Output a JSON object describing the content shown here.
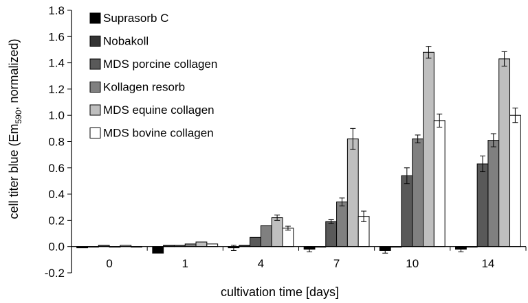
{
  "chart_data": {
    "type": "bar",
    "title": "",
    "xlabel": "cultivation time [days]",
    "ylabel_main": "cell titer blue (Em",
    "ylabel_sub": "590",
    "ylabel_tail": ", normalized)",
    "ylim": [
      -0.2,
      1.8
    ],
    "yticks": [
      "-0.2",
      "0.0",
      "0.2",
      "0.4",
      "0.6",
      "0.8",
      "1.0",
      "1.2",
      "1.4",
      "1.6",
      "1.8"
    ],
    "ytick_values": [
      -0.2,
      0.0,
      0.2,
      0.4,
      0.6,
      0.8,
      1.0,
      1.2,
      1.4,
      1.6,
      1.8
    ],
    "categories": [
      "0",
      "1",
      "4",
      "7",
      "10",
      "14"
    ],
    "legend_position": "top-left",
    "grid": false,
    "series": [
      {
        "name": "Suprasorb C",
        "color": "#000000",
        "values": [
          -0.01,
          -0.05,
          -0.01,
          -0.02,
          -0.03,
          -0.02
        ],
        "errors": [
          0.0,
          0.0,
          0.02,
          0.02,
          0.02,
          0.02
        ]
      },
      {
        "name": "Nobakoll",
        "color": "#333333",
        "values": [
          0.0,
          0.01,
          0.01,
          0.0,
          0.0,
          0.0
        ],
        "errors": [
          0.0,
          0.0,
          0.0,
          0.0,
          0.0,
          0.0
        ]
      },
      {
        "name": "MDS porcine collagen",
        "color": "#595959",
        "values": [
          0.01,
          0.01,
          0.07,
          0.19,
          0.54,
          0.63
        ],
        "errors": [
          0.0,
          0.0,
          0.0,
          0.015,
          0.06,
          0.06
        ]
      },
      {
        "name": "Kollagen resorb",
        "color": "#808080",
        "values": [
          0.0,
          0.02,
          0.16,
          0.34,
          0.82,
          0.81
        ],
        "errors": [
          0.0,
          0.0,
          0.0,
          0.03,
          0.03,
          0.05
        ]
      },
      {
        "name": "MDS equine collagen",
        "color": "#bfbfbf",
        "values": [
          0.01,
          0.035,
          0.22,
          0.82,
          1.48,
          1.43
        ],
        "errors": [
          0.0,
          0.0,
          0.02,
          0.08,
          0.045,
          0.055
        ]
      },
      {
        "name": "MDS bovine collagen",
        "color": "#ffffff",
        "values": [
          0.0,
          0.02,
          0.14,
          0.23,
          0.96,
          1.0
        ],
        "errors": [
          0.0,
          0.0,
          0.015,
          0.04,
          0.05,
          0.055
        ]
      }
    ]
  }
}
